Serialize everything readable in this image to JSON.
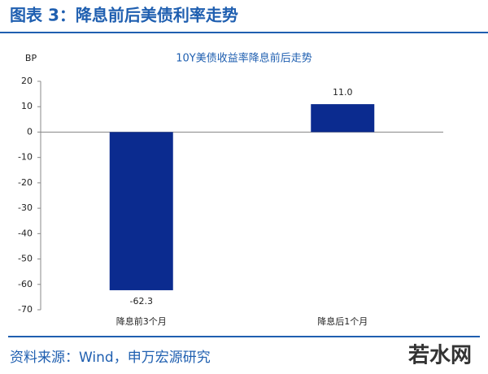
{
  "header": {
    "title": "图表 3：降息前后美债利率走势"
  },
  "chart_data": {
    "type": "bar",
    "title": "10Y美债收益率降息前后走势",
    "y_label": "BP",
    "categories": [
      "降息前3个月",
      "降息后1个月"
    ],
    "values": [
      -62.3,
      11.0
    ],
    "value_labels": [
      "-62.3",
      "11.0"
    ],
    "color": "#0b2b8f",
    "ylim": [
      -70,
      20
    ],
    "yticks": [
      20,
      10,
      0,
      -10,
      -20,
      -30,
      -40,
      -50,
      -60,
      -70
    ],
    "grid": false
  },
  "footer": {
    "source": "资料来源：Wind，申万宏源研究",
    "watermark": "若水网"
  }
}
